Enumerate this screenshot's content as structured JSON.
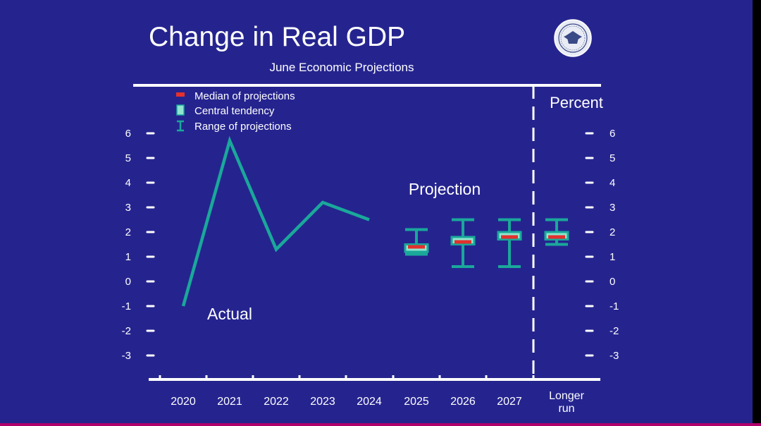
{
  "colors": {
    "background": "#25248f",
    "frame": "#000000",
    "text": "#ffffff",
    "line": "#1aa89a",
    "central_fill": "#8ee6cf",
    "central_stroke": "#1aa89a",
    "median": "#e3312d",
    "bottom_bar": "#b0006b"
  },
  "seal": {
    "icon": "federal-reserve-seal-icon"
  },
  "chart_data": {
    "type": "line",
    "title": "Change in Real GDP",
    "subtitle": "June Economic Projections",
    "unit_label": "Percent",
    "ylim": [
      -3,
      6
    ],
    "y_ticks": [
      "6",
      "5",
      "4",
      "3",
      "2",
      "1",
      "0",
      "-1",
      "-2",
      "-3"
    ],
    "categories": [
      "2020",
      "2021",
      "2022",
      "2023",
      "2024",
      "2025",
      "2026",
      "2027",
      "Longer run"
    ],
    "longer_run_label": [
      "Longer",
      "run"
    ],
    "legend": [
      {
        "label": "Median of projections",
        "icon": "median-marker-icon"
      },
      {
        "label": "Central tendency",
        "icon": "central-tendency-icon"
      },
      {
        "label": "Range of projections",
        "icon": "range-whisker-icon"
      }
    ],
    "annotations": {
      "actual": "Actual",
      "projection": "Projection"
    },
    "actual": {
      "x": [
        "2020",
        "2021",
        "2022",
        "2023",
        "2024"
      ],
      "values": [
        -1.0,
        5.7,
        1.3,
        3.2,
        2.5
      ]
    },
    "projections": [
      {
        "x": "2025",
        "range": [
          1.1,
          2.1
        ],
        "central": [
          1.2,
          1.5
        ],
        "median": 1.4
      },
      {
        "x": "2026",
        "range": [
          0.6,
          2.5
        ],
        "central": [
          1.5,
          1.8
        ],
        "median": 1.6
      },
      {
        "x": "2027",
        "range": [
          0.6,
          2.5
        ],
        "central": [
          1.7,
          2.0
        ],
        "median": 1.8
      },
      {
        "x": "Longer run",
        "range": [
          1.5,
          2.5
        ],
        "central": [
          1.7,
          2.0
        ],
        "median": 1.8
      }
    ],
    "grid": false
  }
}
